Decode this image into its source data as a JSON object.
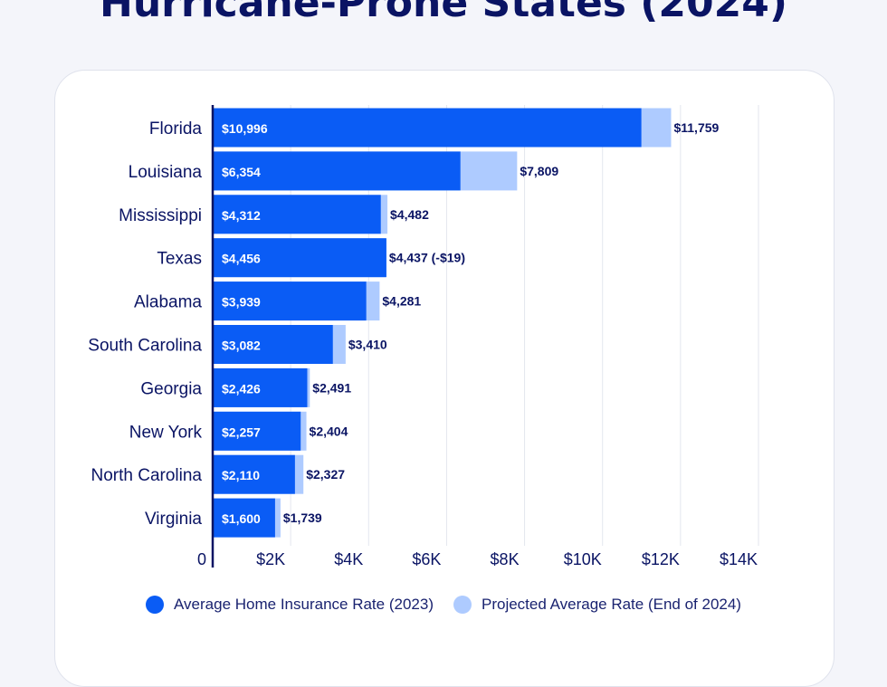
{
  "page": {
    "title": "Hurricane-Prone States (2024)"
  },
  "colors": {
    "current": "#0a5cf5",
    "projected": "#aecbff",
    "label_dark": "#0a1464",
    "axis": "#0a1464",
    "grid": "#e3e6ee"
  },
  "chart_data": {
    "type": "bar",
    "orientation": "horizontal",
    "categories": [
      "Florida",
      "Louisiana",
      "Mississippi",
      "Texas",
      "Alabama",
      "South Carolina",
      "Georgia",
      "New York",
      "North Carolina",
      "Virginia"
    ],
    "series": [
      {
        "name": "Average Home Insurance Rate (2023)",
        "values": [
          10996,
          6354,
          4312,
          4456,
          3939,
          3082,
          2426,
          2257,
          2110,
          1600
        ],
        "labels": [
          "$10,996",
          "$6,354",
          "$4,312",
          "$4,456",
          "$3,939",
          "$3,082",
          "$2,426",
          "$2,257",
          "$2,110",
          "$1,600"
        ]
      },
      {
        "name": "Projected Average Rate (End of 2024)",
        "values": [
          11759,
          7809,
          4482,
          4437,
          4281,
          3410,
          2491,
          2404,
          2327,
          1739
        ],
        "labels": [
          "$11,759",
          "$7,809",
          "$4,482",
          "$4,437 (-$19)",
          "$4,281",
          "$3,410",
          "$2,491",
          "$2,404",
          "$2,327",
          "$1,739"
        ]
      }
    ],
    "xlim": [
      0,
      14000
    ],
    "x_ticks": [
      0,
      2000,
      4000,
      6000,
      8000,
      10000,
      12000,
      14000
    ],
    "x_tick_labels": [
      "0",
      "$2K",
      "$4K",
      "$6K",
      "$8K",
      "$10K",
      "$12K",
      "$14K"
    ],
    "grid": true,
    "legend_position": "bottom"
  }
}
